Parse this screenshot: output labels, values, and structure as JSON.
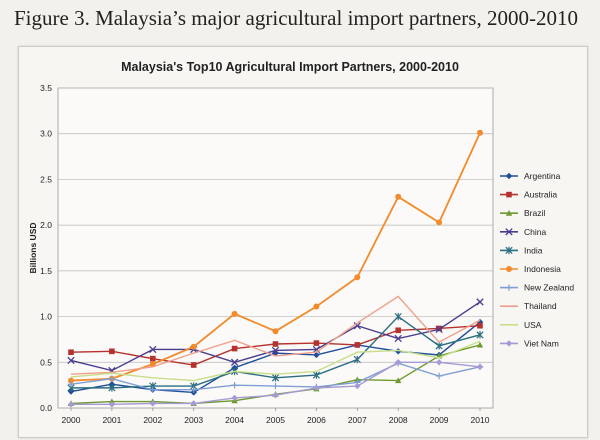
{
  "figure_caption": "Figure 3. Malaysia’s major agricultural import partners, 2000-2010",
  "chart_data": {
    "type": "line",
    "title": "Malaysia's Top10  Agricultural Import Partners, 2000-2010",
    "xlabel": "",
    "ylabel": "Billions USD",
    "x": [
      "2000",
      "2001",
      "2002",
      "2003",
      "2004",
      "2005",
      "2006",
      "2007",
      "2008",
      "2009",
      "2010"
    ],
    "ylim": [
      0,
      3.5
    ],
    "yticks": [
      "0.0",
      "0.5",
      "1.0",
      "1.5",
      "2.0",
      "2.5",
      "3.0",
      "3.5"
    ],
    "grid": true,
    "legend_position": "right",
    "series": [
      {
        "name": "Argentina",
        "color": "#1f4e9c",
        "marker": "diamond",
        "values": [
          0.18,
          0.26,
          0.2,
          0.17,
          0.44,
          0.6,
          0.58,
          0.69,
          0.62,
          0.58,
          0.94
        ]
      },
      {
        "name": "Australia",
        "color": "#b5322e",
        "marker": "square",
        "values": [
          0.61,
          0.62,
          0.54,
          0.47,
          0.65,
          0.7,
          0.71,
          0.69,
          0.85,
          0.87,
          0.9
        ]
      },
      {
        "name": "Brazil",
        "color": "#6e9a2f",
        "marker": "triangle",
        "values": [
          0.05,
          0.07,
          0.07,
          0.05,
          0.08,
          0.15,
          0.21,
          0.31,
          0.3,
          0.57,
          0.69
        ]
      },
      {
        "name": "China",
        "color": "#4a3d8f",
        "marker": "x",
        "values": [
          0.52,
          0.41,
          0.64,
          0.64,
          0.5,
          0.63,
          0.64,
          0.9,
          0.76,
          0.86,
          1.16
        ]
      },
      {
        "name": "India",
        "color": "#2a6e80",
        "marker": "star",
        "values": [
          0.22,
          0.22,
          0.24,
          0.24,
          0.4,
          0.33,
          0.36,
          0.53,
          1.0,
          0.68,
          0.8
        ]
      },
      {
        "name": "Indonesia",
        "color": "#f28b2b",
        "marker": "circle",
        "values": [
          0.3,
          0.32,
          0.48,
          0.67,
          1.03,
          0.84,
          1.11,
          1.43,
          2.31,
          2.03,
          3.01
        ]
      },
      {
        "name": "New Zealand",
        "color": "#7f9fd4",
        "marker": "plus",
        "values": [
          0.26,
          0.32,
          0.2,
          0.2,
          0.25,
          0.24,
          0.23,
          0.28,
          0.49,
          0.35,
          0.45
        ]
      },
      {
        "name": "Thailand",
        "color": "#f0a08a",
        "marker": "line",
        "values": [
          0.37,
          0.39,
          0.45,
          0.6,
          0.74,
          0.57,
          0.61,
          0.93,
          1.22,
          0.72,
          0.96
        ]
      },
      {
        "name": "USA",
        "color": "#c8de88",
        "marker": "line",
        "values": [
          0.34,
          0.38,
          0.33,
          0.3,
          0.4,
          0.37,
          0.4,
          0.61,
          0.63,
          0.55,
          0.73
        ]
      },
      {
        "name": "Viet Nam",
        "color": "#a59ad6",
        "marker": "diamond",
        "values": [
          0.04,
          0.04,
          0.05,
          0.05,
          0.11,
          0.14,
          0.22,
          0.24,
          0.5,
          0.5,
          0.45
        ]
      }
    ]
  }
}
